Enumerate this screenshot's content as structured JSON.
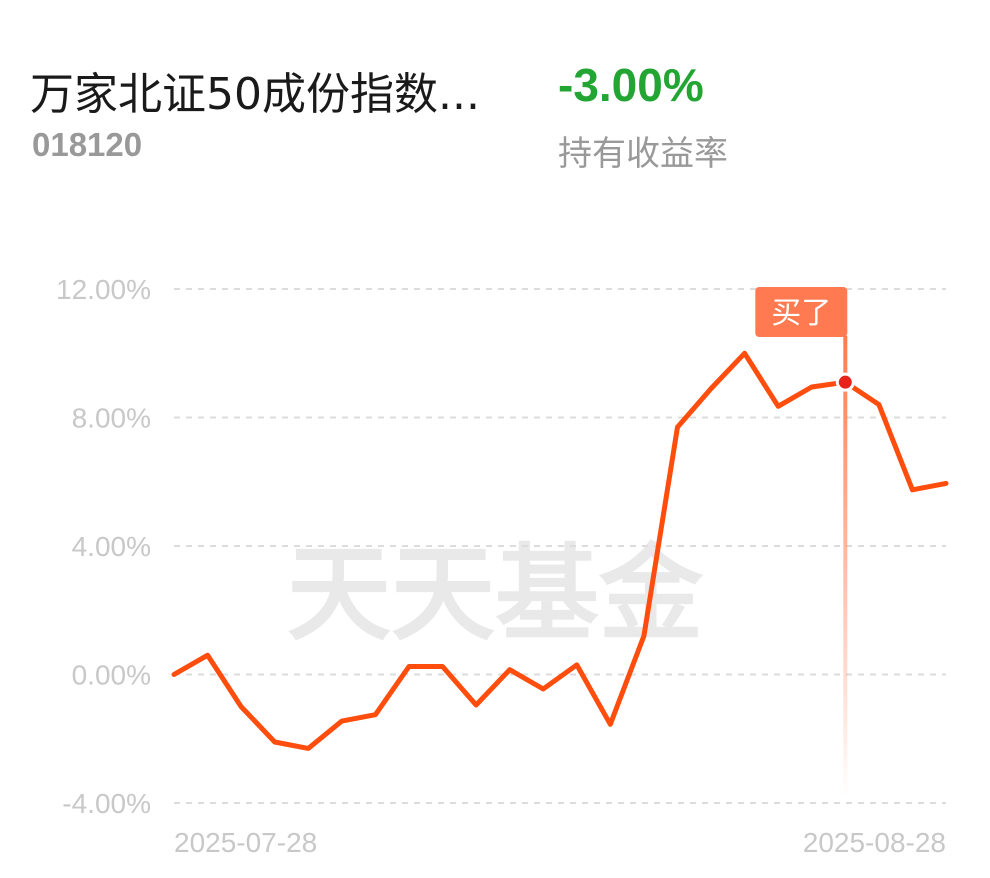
{
  "header": {
    "fund_name": "万家北证50成份指数...",
    "fund_code": "018120",
    "holding_return": "-3.00%",
    "holding_return_label": "持有收益率",
    "return_color": "#22a532"
  },
  "watermark": "天天基金",
  "buy_marker": {
    "label": "买了",
    "index": 20,
    "color": "#ff7a50"
  },
  "chart_data": {
    "type": "line",
    "title": "",
    "xlabel": "",
    "ylabel": "",
    "ylim": [
      -4,
      12
    ],
    "yticks": [
      "12.00%",
      "8.00%",
      "4.00%",
      "0.00%",
      "-4.00%"
    ],
    "ytick_values": [
      12,
      8,
      4,
      0,
      -4
    ],
    "xtick_labels": [
      "2025-07-28",
      "2025-08-28"
    ],
    "grid": true,
    "series": [
      {
        "color": "#ff4d0d",
        "values": [
          0.0,
          0.6,
          -1.0,
          -2.1,
          -2.3,
          -1.45,
          -1.25,
          0.25,
          0.25,
          -0.95,
          0.15,
          -0.45,
          0.3,
          -1.55,
          1.2,
          7.7,
          8.9,
          10.0,
          8.35,
          8.95,
          9.1,
          8.4,
          5.75,
          5.95
        ]
      }
    ]
  }
}
